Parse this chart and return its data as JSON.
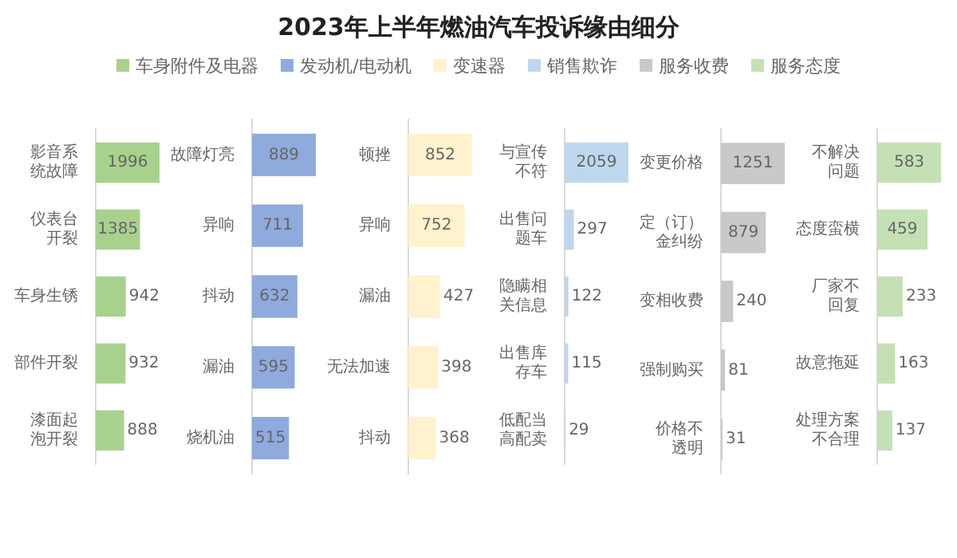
{
  "chart_data": [
    {
      "type": "other",
      "title": "2023年上半年燃油汽车投诉缘由细分"
    },
    {
      "type": "bar",
      "orientation": "horizontal",
      "legend": "top",
      "tick_labels": "y",
      "data_labels": true,
      "categories": [
        "影音系统故障",
        "仪表台开裂",
        "车身生锈",
        "部件开裂",
        "漆面起泡开裂"
      ],
      "series": [
        {
          "name": "车身附件及电器",
          "color": "#a9d18e",
          "values": [
            1996,
            1385,
            942,
            932,
            888
          ]
        }
      ]
    },
    {
      "type": "bar",
      "orientation": "horizontal",
      "legend": "top",
      "tick_labels": "y",
      "data_labels": true,
      "categories": [
        "故障灯亮",
        "异响",
        "抖动",
        "漏油",
        "烧机油"
      ],
      "series": [
        {
          "name": "发动机/电动机",
          "color": "#8faadc",
          "values": [
            889,
            711,
            632,
            595,
            515
          ]
        }
      ]
    },
    {
      "type": "bar",
      "orientation": "horizontal",
      "legend": "top",
      "tick_labels": "y",
      "data_labels": true,
      "categories": [
        "顿挫",
        "异响",
        "漏油",
        "无法加速",
        "抖动"
      ],
      "series": [
        {
          "name": "变速器",
          "color": "#fff2cc",
          "values": [
            852,
            752,
            427,
            398,
            368
          ]
        }
      ]
    },
    {
      "type": "bar",
      "orientation": "horizontal",
      "legend": "top",
      "tick_labels": "y",
      "data_labels": true,
      "categories": [
        "与宣传不符",
        "出售问题车",
        "隐瞒相关信息",
        "出售库存车",
        "低配当高配卖"
      ],
      "series": [
        {
          "name": "销售欺诈",
          "color": "#bdd7ee",
          "values": [
            2059,
            297,
            122,
            115,
            29
          ]
        }
      ]
    },
    {
      "type": "bar",
      "orientation": "horizontal",
      "legend": "top",
      "tick_labels": "y",
      "data_labels": true,
      "categories": [
        "变更价格",
        "定（订）金纠纷",
        "变相收费",
        "强制购买",
        "价格不透明"
      ],
      "series": [
        {
          "name": "服务收费",
          "color": "#c9c9c9",
          "values": [
            1251,
            879,
            240,
            81,
            31
          ]
        }
      ]
    },
    {
      "type": "bar",
      "orientation": "horizontal",
      "legend": "top",
      "tick_labels": "y",
      "data_labels": true,
      "categories": [
        "不解决问题",
        "态度蛮横",
        "厂家不回复",
        "故意拖延",
        "处理方案不合理"
      ],
      "series": [
        {
          "name": "服务态度",
          "color": "#c5e0b4",
          "values": [
            583,
            459,
            233,
            163,
            137
          ]
        }
      ]
    }
  ]
}
